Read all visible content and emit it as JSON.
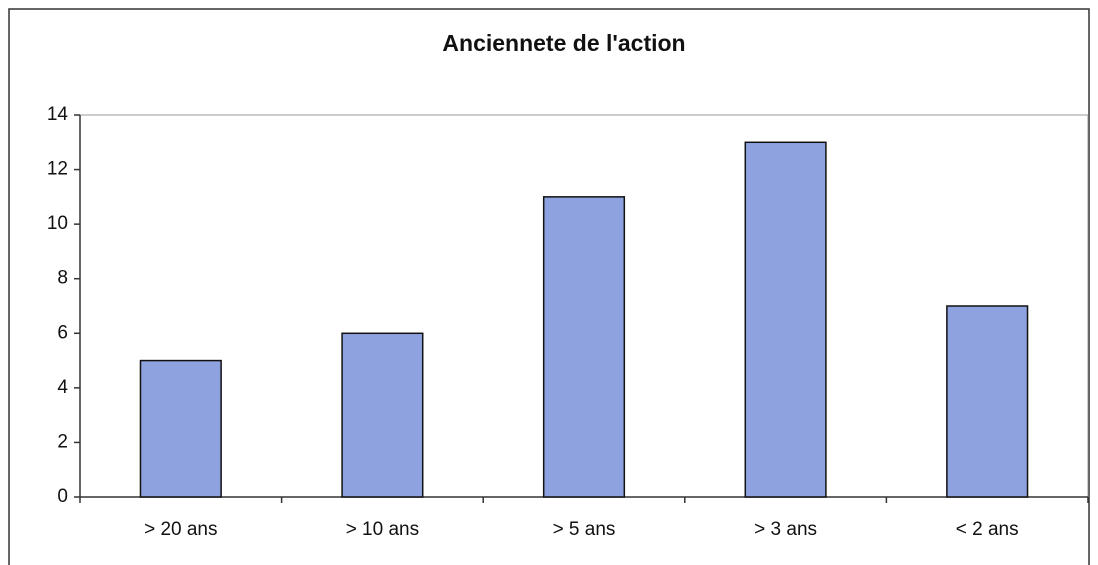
{
  "chart_data": {
    "type": "bar",
    "title": "Anciennete de l'action",
    "categories": [
      "> 20 ans",
      "> 10 ans",
      "> 5 ans",
      "> 3 ans",
      "< 2 ans"
    ],
    "values": [
      5,
      6,
      11,
      13,
      7
    ],
    "color": "#8fa2e0",
    "ylim": [
      0,
      14
    ],
    "yticks": [
      0,
      2,
      4,
      6,
      8,
      10,
      12,
      14
    ],
    "grid": false
  }
}
